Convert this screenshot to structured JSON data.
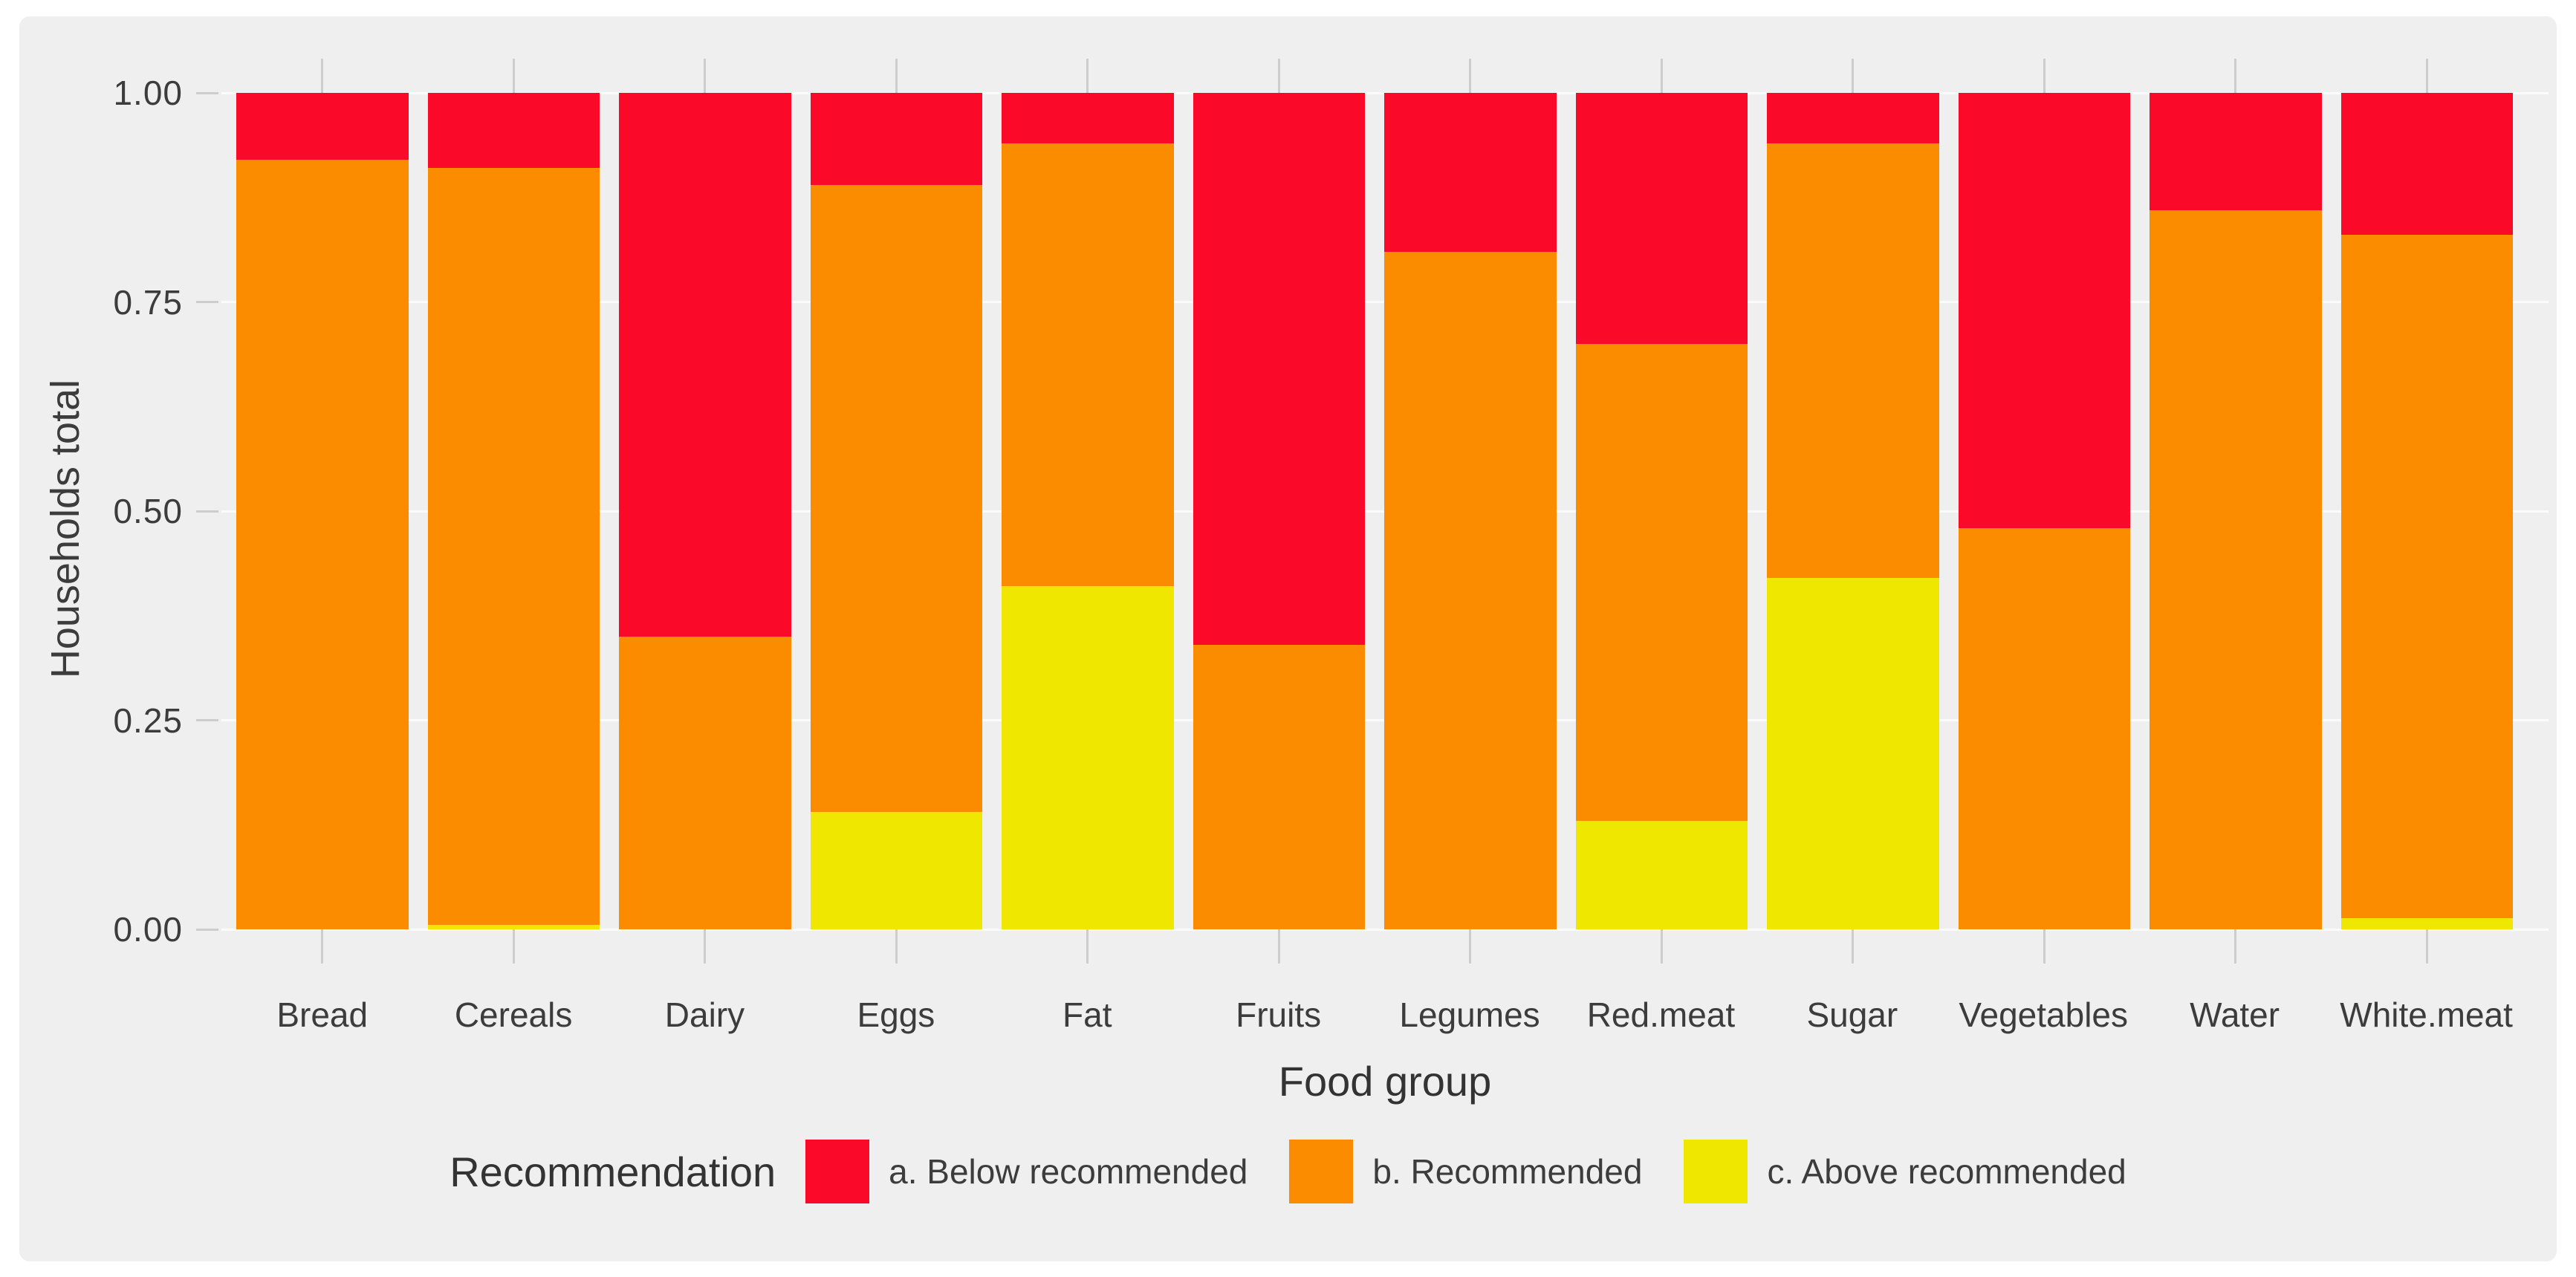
{
  "colors": {
    "panel_background": "#efefef",
    "page_background": "#ffffff",
    "gridline": "#fbfbfb",
    "tick": "#cdcdcd",
    "text": "#3c3c3c",
    "below": "#fa0a28",
    "recommended": "#fb8c00",
    "above": "#efe700"
  },
  "chart_data": {
    "type": "bar",
    "stacked": true,
    "normalized": true,
    "title": "",
    "xlabel": "Food group",
    "ylabel": "Households total",
    "ylim": [
      0,
      1
    ],
    "yticks": [
      {
        "label": "1.00",
        "value": 1.0
      },
      {
        "label": "0.75",
        "value": 0.75
      },
      {
        "label": "0.50",
        "value": 0.5
      },
      {
        "label": "0.25",
        "value": 0.25
      },
      {
        "label": "0.00",
        "value": 0.0
      }
    ],
    "grid": "horizontal-major",
    "categories": [
      "Bread",
      "Cereals",
      "Dairy",
      "Eggs",
      "Fat",
      "Fruits",
      "Legumes",
      "Red.meat",
      "Sugar",
      "Vegetables",
      "Water",
      "White.meat"
    ],
    "series": [
      {
        "name": "a. Below recommended",
        "color": "#fa0a28",
        "values": [
          0.08,
          0.09,
          0.65,
          0.11,
          0.06,
          0.66,
          0.19,
          0.3,
          0.06,
          0.52,
          0.14,
          0.17
        ]
      },
      {
        "name": "b. Recommended",
        "color": "#fb8c00",
        "values": [
          0.92,
          0.905,
          0.35,
          0.75,
          0.53,
          0.34,
          0.81,
          0.57,
          0.52,
          0.48,
          0.86,
          0.817
        ]
      },
      {
        "name": "c. Above recommended",
        "color": "#efe700",
        "values": [
          0.0,
          0.005,
          0.0,
          0.14,
          0.41,
          0.0,
          0.0,
          0.13,
          0.42,
          0.0,
          0.0,
          0.013
        ]
      }
    ],
    "legend": {
      "title": "Recommendation",
      "position": "bottom",
      "entries": [
        "a. Below recommended",
        "b. Recommended",
        "c. Above recommended"
      ]
    }
  }
}
